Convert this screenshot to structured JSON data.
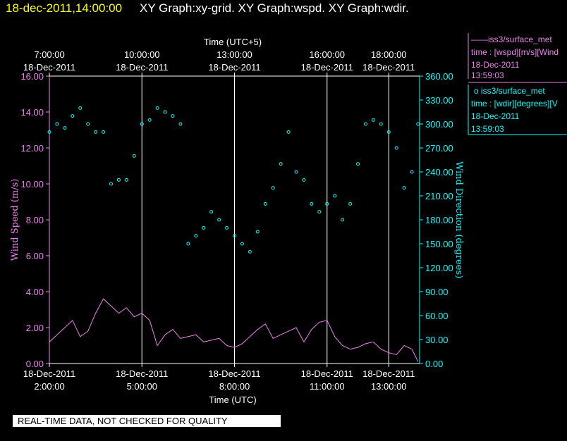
{
  "header": {
    "datetime": "18-dec-2011,14:00:00",
    "graphs": "XY Graph:xy-grid.  XY Graph:wspd.  XY Graph:wdir."
  },
  "colors": {
    "background": "#000000",
    "datetime": "#ffff00",
    "wspd": "#ee82ee",
    "wdir": "#00ffff",
    "grid": "#ffffff"
  },
  "axes": {
    "top_title": "Time (UTC+5)",
    "bottom_title": "Time (UTC)",
    "left_title": "Wind Speed (m/s)",
    "right_title": "Wind Direction (degrees)",
    "top_ticks": [
      {
        "time": "7:00:00",
        "date": "18-Dec-2011",
        "h": 2
      },
      {
        "time": "10:00:00",
        "date": "18-Dec-2011",
        "h": 5
      },
      {
        "time": "13:00:00",
        "date": "18-Dec-2011",
        "h": 8
      },
      {
        "time": "16:00:00",
        "date": "18-Dec-2011",
        "h": 11
      },
      {
        "time": "18:00:00",
        "date": "18-Dec-2011",
        "h": 13
      }
    ],
    "bottom_ticks": [
      {
        "date": "18-Dec-2011",
        "time": "2:00:00",
        "h": 2
      },
      {
        "date": "18-Dec-2011",
        "time": "5:00:00",
        "h": 5
      },
      {
        "date": "18-Dec-2011",
        "time": "8:00:00",
        "h": 8
      },
      {
        "date": "18-Dec-2011",
        "time": "11:00:00",
        "h": 11
      },
      {
        "date": "18-Dec-2011",
        "time": "13:00:00",
        "h": 13
      }
    ],
    "left_ticks": [
      "0.00",
      "2.00",
      "4.00",
      "6.00",
      "8.00",
      "10.00",
      "12.00",
      "14.00",
      "16.00"
    ],
    "right_ticks": [
      "0.00",
      "30.00",
      "60.00",
      "90.00",
      "120.00",
      "150.00",
      "180.00",
      "210.00",
      "240.00",
      "270.00",
      "300.00",
      "330.00",
      "360.00"
    ]
  },
  "legend": {
    "wspd": {
      "line1": "——iss3/surface_met",
      "line2": "time : [wspd][m/s][Wind",
      "line3": "18-Dec-2011",
      "line4": "13:59:03"
    },
    "wdir": {
      "line1": "o  iss3/surface_met",
      "line2": "time : [wdir][degrees][V",
      "line3": "18-Dec-2011",
      "line4": "13:59:03"
    }
  },
  "footer": {
    "notice": "REAL-TIME DATA, NOT CHECKED FOR QUALITY"
  },
  "chart_data": {
    "type": "line",
    "x_unit": "hours UTC on 18-Dec-2011",
    "xlim": [
      2,
      14
    ],
    "grid": "vertical lines at tick times",
    "series": [
      {
        "name": "iss3/surface_met wspd",
        "axis": "left",
        "ylim": [
          0,
          16
        ],
        "style": "line",
        "x": [
          2.0,
          2.25,
          2.5,
          2.75,
          3.0,
          3.25,
          3.5,
          3.75,
          4.0,
          4.25,
          4.5,
          4.75,
          5.0,
          5.25,
          5.5,
          5.75,
          6.0,
          6.25,
          6.5,
          6.75,
          7.0,
          7.25,
          7.5,
          7.75,
          8.0,
          8.25,
          8.5,
          8.75,
          9.0,
          9.25,
          9.5,
          9.75,
          10.0,
          10.25,
          10.5,
          10.75,
          11.0,
          11.25,
          11.5,
          11.75,
          12.0,
          12.25,
          12.5,
          12.75,
          13.0,
          13.25,
          13.5,
          13.75,
          13.95
        ],
        "values": [
          1.2,
          1.6,
          2.0,
          2.4,
          1.5,
          1.8,
          2.8,
          3.6,
          3.2,
          2.8,
          3.1,
          2.6,
          2.8,
          2.4,
          1.0,
          1.6,
          1.9,
          1.4,
          1.5,
          1.6,
          1.2,
          1.3,
          1.4,
          1.0,
          0.9,
          1.1,
          1.5,
          1.9,
          2.2,
          1.4,
          1.6,
          1.8,
          2.0,
          1.2,
          1.9,
          2.3,
          2.4,
          1.5,
          1.0,
          0.8,
          0.9,
          1.1,
          1.2,
          0.8,
          0.6,
          0.5,
          1.0,
          0.8,
          0.1
        ]
      },
      {
        "name": "iss3/surface_met wdir",
        "axis": "right",
        "ylim": [
          0,
          360
        ],
        "style": "scatter",
        "x": [
          2.0,
          2.25,
          2.5,
          2.75,
          3.0,
          3.25,
          3.5,
          3.75,
          4.0,
          4.25,
          4.5,
          4.75,
          5.0,
          5.25,
          5.5,
          5.75,
          6.0,
          6.25,
          6.5,
          6.75,
          7.0,
          7.25,
          7.5,
          7.75,
          8.0,
          8.25,
          8.5,
          8.75,
          9.0,
          9.25,
          9.5,
          9.75,
          10.0,
          10.25,
          10.5,
          10.75,
          11.0,
          11.25,
          11.5,
          11.75,
          12.0,
          12.25,
          12.5,
          12.75,
          13.0,
          13.25,
          13.5,
          13.75,
          13.95
        ],
        "values": [
          290,
          300,
          295,
          310,
          320,
          300,
          290,
          290,
          225,
          230,
          230,
          260,
          300,
          305,
          320,
          315,
          310,
          300,
          150,
          160,
          170,
          190,
          180,
          170,
          160,
          150,
          140,
          165,
          200,
          220,
          250,
          290,
          240,
          230,
          200,
          190,
          200,
          210,
          180,
          200,
          250,
          300,
          305,
          300,
          290,
          270,
          220,
          240,
          300
        ]
      }
    ]
  }
}
